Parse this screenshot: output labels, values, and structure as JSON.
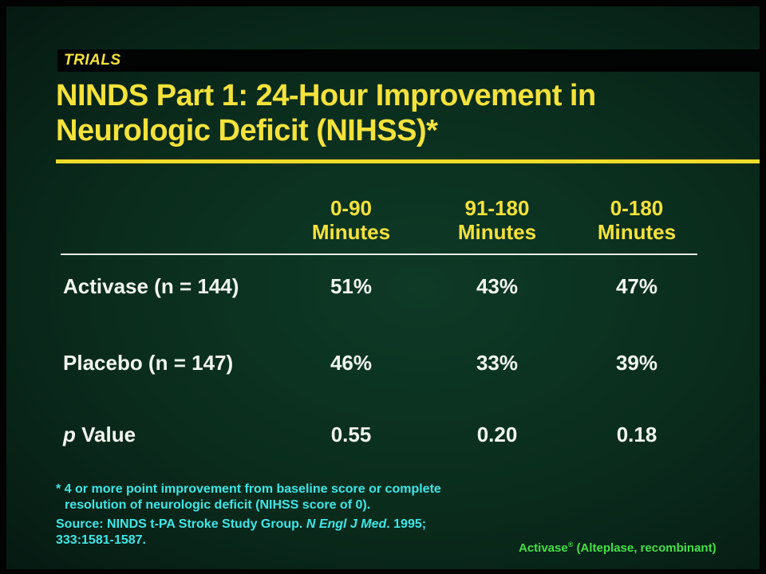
{
  "slide": {
    "section_label": "TRIALS",
    "title_line1": "NINDS Part 1: 24-Hour Improvement in",
    "title_line2": "Neurologic Deficit (NIHSS)*"
  },
  "table": {
    "columns": [
      {
        "line1": "0-90",
        "line2": "Minutes"
      },
      {
        "line1": "91-180",
        "line2": "Minutes"
      },
      {
        "line1": "0-180",
        "line2": "Minutes"
      }
    ],
    "rows": [
      {
        "label": "Activase (n = 144)",
        "values": [
          "51%",
          "43%",
          "47%"
        ]
      },
      {
        "label": "Placebo (n = 147)",
        "values": [
          "46%",
          "33%",
          "39%"
        ]
      },
      {
        "label_p": "p",
        "label_rest": " Value",
        "values": [
          "0.55",
          "0.20",
          "0.18"
        ]
      }
    ]
  },
  "footnote": {
    "line1": "* 4 or more point improvement from baseline score or complete",
    "line2": "resolution of neurologic deficit (NIHSS score of 0)."
  },
  "source": {
    "prefix": "Source: NINDS t-PA Stroke Study Group. ",
    "journal": "N Engl J Med",
    "suffix1": ". 1995;",
    "line2": "333:1581-1587."
  },
  "brand": {
    "name": "Activase",
    "reg": "®",
    "desc": " (Alteplase, recombinant)"
  },
  "colors": {
    "background": "#0a2c1d",
    "title_yellow": "#f5e23a",
    "text_white": "#f2f6f0",
    "footnote_cyan": "#3fe6e6",
    "brand_green": "#44e044"
  }
}
